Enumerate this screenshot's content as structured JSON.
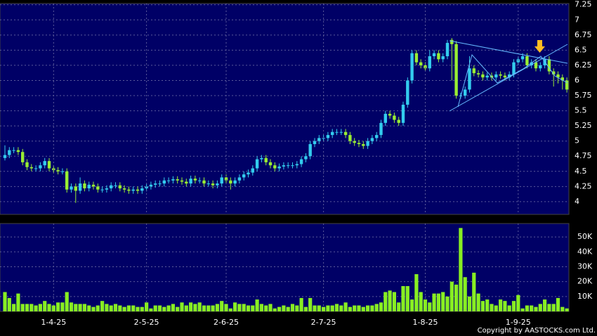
{
  "chart_data": [
    {
      "type": "candlestick",
      "open": [
        4.72,
        4.77,
        4.85,
        4.85,
        4.82,
        4.65,
        4.57,
        4.55,
        4.55,
        4.6,
        4.67,
        4.55,
        4.52,
        4.5,
        4.5,
        4.2,
        4.25,
        4.18,
        4.3,
        4.22,
        4.28,
        4.25,
        4.2,
        4.2,
        4.22,
        4.27,
        4.27,
        4.22,
        4.2,
        4.18,
        4.2,
        4.18,
        4.22,
        4.25,
        4.28,
        4.3,
        4.3,
        4.35,
        4.35,
        4.37,
        4.35,
        4.33,
        4.3,
        4.38,
        4.35,
        4.35,
        4.3,
        4.3,
        4.27,
        4.3,
        4.4,
        4.35,
        4.3,
        4.35,
        4.4,
        4.45,
        4.48,
        4.55,
        4.7,
        4.72,
        4.65,
        4.6,
        4.55,
        4.58,
        4.6,
        4.6,
        4.6,
        4.62,
        4.7,
        4.75,
        4.95,
        5.0,
        5.05,
        5.05,
        5.1,
        5.15,
        5.15,
        5.15,
        5.1,
        5.0,
        4.97,
        4.95,
        4.92,
        5.0,
        5.05,
        5.1,
        5.3,
        5.45,
        5.42,
        5.35,
        5.3,
        5.6,
        6.0,
        6.45,
        6.3,
        6.25,
        6.2,
        6.4,
        6.45,
        6.35,
        6.4,
        6.67,
        6.6,
        5.75,
        5.75,
        5.85,
        6.2,
        6.12,
        6.1,
        6.05,
        6.08,
        6.05,
        6.1,
        6.08,
        6.05,
        6.1,
        6.3,
        6.35,
        6.4,
        6.25,
        6.3,
        6.2,
        6.25,
        6.35,
        6.15,
        6.1,
        6.05,
        6.0
      ],
      "high": [
        4.93,
        4.9,
        4.9,
        4.9,
        4.87,
        4.7,
        4.62,
        4.6,
        4.65,
        4.72,
        4.72,
        4.6,
        4.57,
        4.55,
        4.55,
        4.3,
        4.3,
        4.4,
        4.35,
        4.33,
        4.33,
        4.3,
        4.25,
        4.27,
        4.32,
        4.32,
        4.32,
        4.27,
        4.25,
        4.25,
        4.25,
        4.27,
        4.3,
        4.33,
        4.35,
        4.35,
        4.4,
        4.4,
        4.42,
        4.42,
        4.4,
        4.38,
        4.43,
        4.43,
        4.4,
        4.4,
        4.35,
        4.35,
        4.35,
        4.45,
        4.45,
        4.4,
        4.4,
        4.45,
        4.5,
        4.53,
        4.6,
        4.75,
        4.77,
        4.77,
        4.7,
        4.65,
        4.63,
        4.65,
        4.65,
        4.65,
        4.67,
        4.75,
        4.8,
        5.0,
        5.05,
        5.1,
        5.1,
        5.15,
        5.2,
        5.2,
        5.2,
        5.2,
        5.15,
        5.05,
        5.02,
        5.0,
        5.05,
        5.1,
        5.15,
        5.35,
        5.5,
        5.5,
        5.47,
        5.4,
        5.65,
        6.05,
        6.5,
        6.5,
        6.35,
        6.3,
        6.5,
        6.5,
        6.5,
        6.45,
        6.67,
        6.7,
        6.65,
        5.8,
        5.9,
        6.4,
        6.25,
        6.17,
        6.15,
        6.13,
        6.13,
        6.15,
        6.15,
        6.13,
        6.15,
        6.35,
        6.4,
        6.45,
        6.45,
        6.35,
        6.35,
        6.3,
        6.4,
        6.4,
        6.2,
        6.15,
        6.1,
        6.05
      ],
      "low": [
        4.68,
        4.72,
        4.8,
        4.77,
        4.6,
        4.52,
        4.5,
        4.5,
        4.5,
        4.55,
        4.5,
        4.47,
        4.45,
        4.45,
        4.15,
        4.15,
        3.98,
        4.13,
        4.17,
        4.17,
        4.2,
        4.15,
        4.15,
        4.15,
        4.17,
        4.22,
        4.17,
        4.15,
        4.13,
        4.13,
        4.13,
        4.13,
        4.17,
        4.2,
        4.23,
        4.25,
        4.25,
        4.3,
        4.3,
        4.3,
        4.28,
        4.25,
        4.25,
        4.3,
        4.3,
        4.25,
        4.25,
        4.22,
        4.22,
        4.25,
        4.3,
        4.2,
        4.25,
        4.3,
        4.35,
        4.4,
        4.43,
        4.5,
        4.65,
        4.6,
        4.55,
        4.5,
        4.5,
        4.53,
        4.55,
        4.55,
        4.55,
        4.57,
        4.65,
        4.7,
        4.9,
        4.95,
        5.0,
        5.0,
        5.05,
        5.1,
        5.1,
        5.05,
        4.95,
        4.92,
        4.9,
        4.87,
        4.87,
        4.95,
        5.0,
        5.05,
        5.25,
        5.37,
        5.3,
        5.25,
        5.25,
        5.55,
        5.95,
        6.25,
        6.2,
        6.15,
        6.15,
        6.35,
        6.3,
        6.3,
        6.35,
        6.0,
        5.7,
        5.7,
        5.7,
        5.8,
        6.07,
        6.05,
        6.0,
        6.0,
        6.0,
        6.0,
        6.03,
        6.0,
        6.0,
        6.05,
        6.25,
        6.3,
        6.2,
        6.2,
        6.15,
        6.15,
        6.2,
        6.1,
        5.9,
        5.95,
        5.85,
        5.8
      ],
      "close": [
        4.77,
        4.85,
        4.85,
        4.82,
        4.65,
        4.57,
        4.55,
        4.55,
        4.6,
        4.67,
        4.55,
        4.52,
        4.5,
        4.5,
        4.2,
        4.25,
        4.18,
        4.3,
        4.22,
        4.28,
        4.25,
        4.2,
        4.2,
        4.22,
        4.27,
        4.27,
        4.22,
        4.2,
        4.18,
        4.2,
        4.18,
        4.22,
        4.25,
        4.28,
        4.3,
        4.3,
        4.35,
        4.35,
        4.37,
        4.35,
        4.33,
        4.3,
        4.38,
        4.35,
        4.35,
        4.3,
        4.3,
        4.27,
        4.3,
        4.4,
        4.35,
        4.3,
        4.35,
        4.4,
        4.45,
        4.48,
        4.55,
        4.7,
        4.72,
        4.65,
        4.6,
        4.55,
        4.58,
        4.6,
        4.6,
        4.6,
        4.62,
        4.7,
        4.75,
        4.95,
        5.0,
        5.05,
        5.05,
        5.1,
        5.15,
        5.15,
        5.15,
        5.1,
        5.0,
        4.97,
        4.95,
        4.92,
        5.0,
        5.05,
        5.1,
        5.3,
        5.45,
        5.42,
        5.35,
        5.3,
        5.6,
        6.0,
        6.45,
        6.3,
        6.25,
        6.2,
        6.4,
        6.45,
        6.35,
        6.4,
        6.62,
        6.6,
        5.75,
        5.75,
        5.85,
        6.2,
        6.12,
        6.1,
        6.05,
        6.08,
        6.05,
        6.1,
        6.08,
        6.05,
        6.1,
        6.3,
        6.35,
        6.4,
        6.25,
        6.3,
        6.2,
        6.25,
        6.35,
        6.15,
        6.1,
        6.05,
        6.0,
        5.85
      ],
      "up_color": "#33ccee",
      "down_color": "#99ee33",
      "ylim": [
        3.79,
        7.27
      ],
      "yticks": [
        4,
        4.25,
        4.5,
        4.75,
        5,
        5.25,
        5.5,
        5.75,
        6,
        6.25,
        6.5,
        6.75,
        7,
        7.25
      ],
      "grid": true
    },
    {
      "type": "bar",
      "categories": [
        null,
        null,
        null,
        null,
        null,
        null,
        null,
        null,
        null,
        null,
        null,
        "1-4-25",
        null,
        null,
        null,
        null,
        null,
        null,
        null,
        null,
        null,
        null,
        null,
        null,
        null,
        null,
        null,
        null,
        null,
        null,
        null,
        null,
        "2-5-25",
        null,
        null,
        null,
        null,
        null,
        null,
        null,
        null,
        null,
        null,
        null,
        null,
        null,
        null,
        null,
        null,
        null,
        "2-6-25",
        null,
        null,
        null,
        null,
        null,
        null,
        null,
        null,
        null,
        null,
        null,
        null,
        null,
        null,
        null,
        null,
        null,
        null,
        null,
        null,
        null,
        "2-7-25",
        null,
        null,
        null,
        null,
        null,
        null,
        null,
        null,
        null,
        null,
        null,
        null,
        null,
        null,
        null,
        null,
        null,
        null,
        null,
        null,
        null,
        null,
        "1-8-25",
        null,
        null,
        null,
        null,
        null,
        null,
        null,
        null,
        null,
        null,
        null,
        null,
        null,
        null,
        null,
        null,
        null,
        null,
        null,
        null,
        "1-9-25",
        null,
        null,
        null,
        null,
        null,
        null,
        null,
        null,
        null,
        null,
        null
      ],
      "values": [
        13000,
        9000,
        5000,
        12000,
        5000,
        5000,
        5000,
        4000,
        5000,
        7000,
        5000,
        4000,
        6000,
        6000,
        13000,
        6000,
        5000,
        5000,
        5000,
        4000,
        3000,
        4000,
        7000,
        5000,
        4000,
        5000,
        4000,
        3000,
        4000,
        4000,
        3000,
        3000,
        6000,
        2000,
        4000,
        4000,
        3000,
        4000,
        5000,
        3000,
        6000,
        4000,
        6000,
        5000,
        6000,
        4000,
        4000,
        4000,
        5000,
        7000,
        5000,
        2000,
        6000,
        5000,
        5000,
        4000,
        4000,
        8000,
        5000,
        4000,
        5000,
        2000,
        3000,
        4000,
        3000,
        5000,
        4000,
        9000,
        3000,
        9000,
        4000,
        4000,
        3000,
        4000,
        4000,
        5000,
        4000,
        6000,
        3000,
        4000,
        4000,
        3000,
        4000,
        4000,
        5000,
        6000,
        13000,
        14000,
        13000,
        6000,
        17000,
        17000,
        8000,
        25000,
        13000,
        8000,
        6000,
        12000,
        12000,
        13000,
        10000,
        20000,
        18000,
        56000,
        23000,
        10000,
        26000,
        12000,
        7000,
        8000,
        5000,
        4000,
        8000,
        7000,
        4000,
        7000,
        11000,
        2000,
        4000,
        4000,
        3000,
        5000,
        8000,
        5000,
        5000,
        9000,
        3000,
        2000
      ],
      "color": "#88ee22",
      "ylim": [
        0,
        59000
      ],
      "yticks": [
        {
          "value": 10000,
          "label": "10K"
        },
        {
          "value": 20000,
          "label": "20K"
        },
        {
          "value": 30000,
          "label": "30K"
        },
        {
          "value": 40000,
          "label": "40K"
        },
        {
          "value": 50000,
          "label": "50K"
        }
      ],
      "grid": true,
      "annotation": "Copyright by AASTOCKS.com Ltd."
    }
  ]
}
